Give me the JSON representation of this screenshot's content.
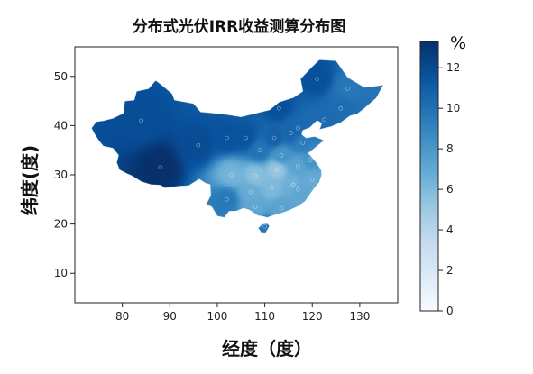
{
  "chart_data": {
    "type": "heatmap",
    "title": "分布式光伏IRR收益测算分布图",
    "xlabel": "经度（度）",
    "ylabel": "纬度(度)",
    "xlim": [
      70,
      138
    ],
    "ylim": [
      4,
      56
    ],
    "xticks": [
      80,
      90,
      100,
      110,
      120,
      130
    ],
    "yticks": [
      10,
      20,
      30,
      40,
      50
    ],
    "colorbar": {
      "unit": "%",
      "range": [
        0,
        13.3
      ],
      "ticks": [
        0,
        2,
        4,
        6,
        8,
        10,
        12
      ],
      "colormap": "Blues"
    },
    "regions": [
      {
        "lon": 84,
        "lat": 41,
        "value": 11.8
      },
      {
        "lon": 88,
        "lat": 31.5,
        "value": 13.3
      },
      {
        "lon": 96,
        "lat": 36,
        "value": 11.9
      },
      {
        "lon": 102,
        "lat": 37.5,
        "value": 11.6
      },
      {
        "lon": 106,
        "lat": 37.5,
        "value": 11.5
      },
      {
        "lon": 103,
        "lat": 30,
        "value": 6.3
      },
      {
        "lon": 102,
        "lat": 25,
        "value": 9.6
      },
      {
        "lon": 107,
        "lat": 26.5,
        "value": 6.8
      },
      {
        "lon": 108,
        "lat": 29.8,
        "value": 5.6
      },
      {
        "lon": 109,
        "lat": 35,
        "value": 9.9
      },
      {
        "lon": 112,
        "lat": 37.5,
        "value": 10.8
      },
      {
        "lon": 108,
        "lat": 23.5,
        "value": 7.1
      },
      {
        "lon": 113.5,
        "lat": 23.2,
        "value": 7.3
      },
      {
        "lon": 110,
        "lat": 19.5,
        "value": 9.8
      },
      {
        "lon": 111.5,
        "lat": 27.5,
        "value": 6.0
      },
      {
        "lon": 112.5,
        "lat": 31,
        "value": 5.2
      },
      {
        "lon": 113.5,
        "lat": 34,
        "value": 8.2
      },
      {
        "lon": 117,
        "lat": 27,
        "value": 7.2
      },
      {
        "lon": 116,
        "lat": 28,
        "value": 6.5
      },
      {
        "lon": 120,
        "lat": 29,
        "value": 6.9
      },
      {
        "lon": 117,
        "lat": 31.8,
        "value": 7.3
      },
      {
        "lon": 119.5,
        "lat": 33,
        "value": 8.1
      },
      {
        "lon": 118,
        "lat": 36.5,
        "value": 9.4
      },
      {
        "lon": 115.5,
        "lat": 38.5,
        "value": 10.6
      },
      {
        "lon": 117,
        "lat": 39.5,
        "value": 10.4
      },
      {
        "lon": 113,
        "lat": 43.5,
        "value": 11.7
      },
      {
        "lon": 122.5,
        "lat": 41.2,
        "value": 10.3
      },
      {
        "lon": 126,
        "lat": 43.5,
        "value": 10.2
      },
      {
        "lon": 127.5,
        "lat": 47.5,
        "value": 9.7
      },
      {
        "lon": 121,
        "lat": 49.5,
        "value": 11.7
      }
    ]
  }
}
